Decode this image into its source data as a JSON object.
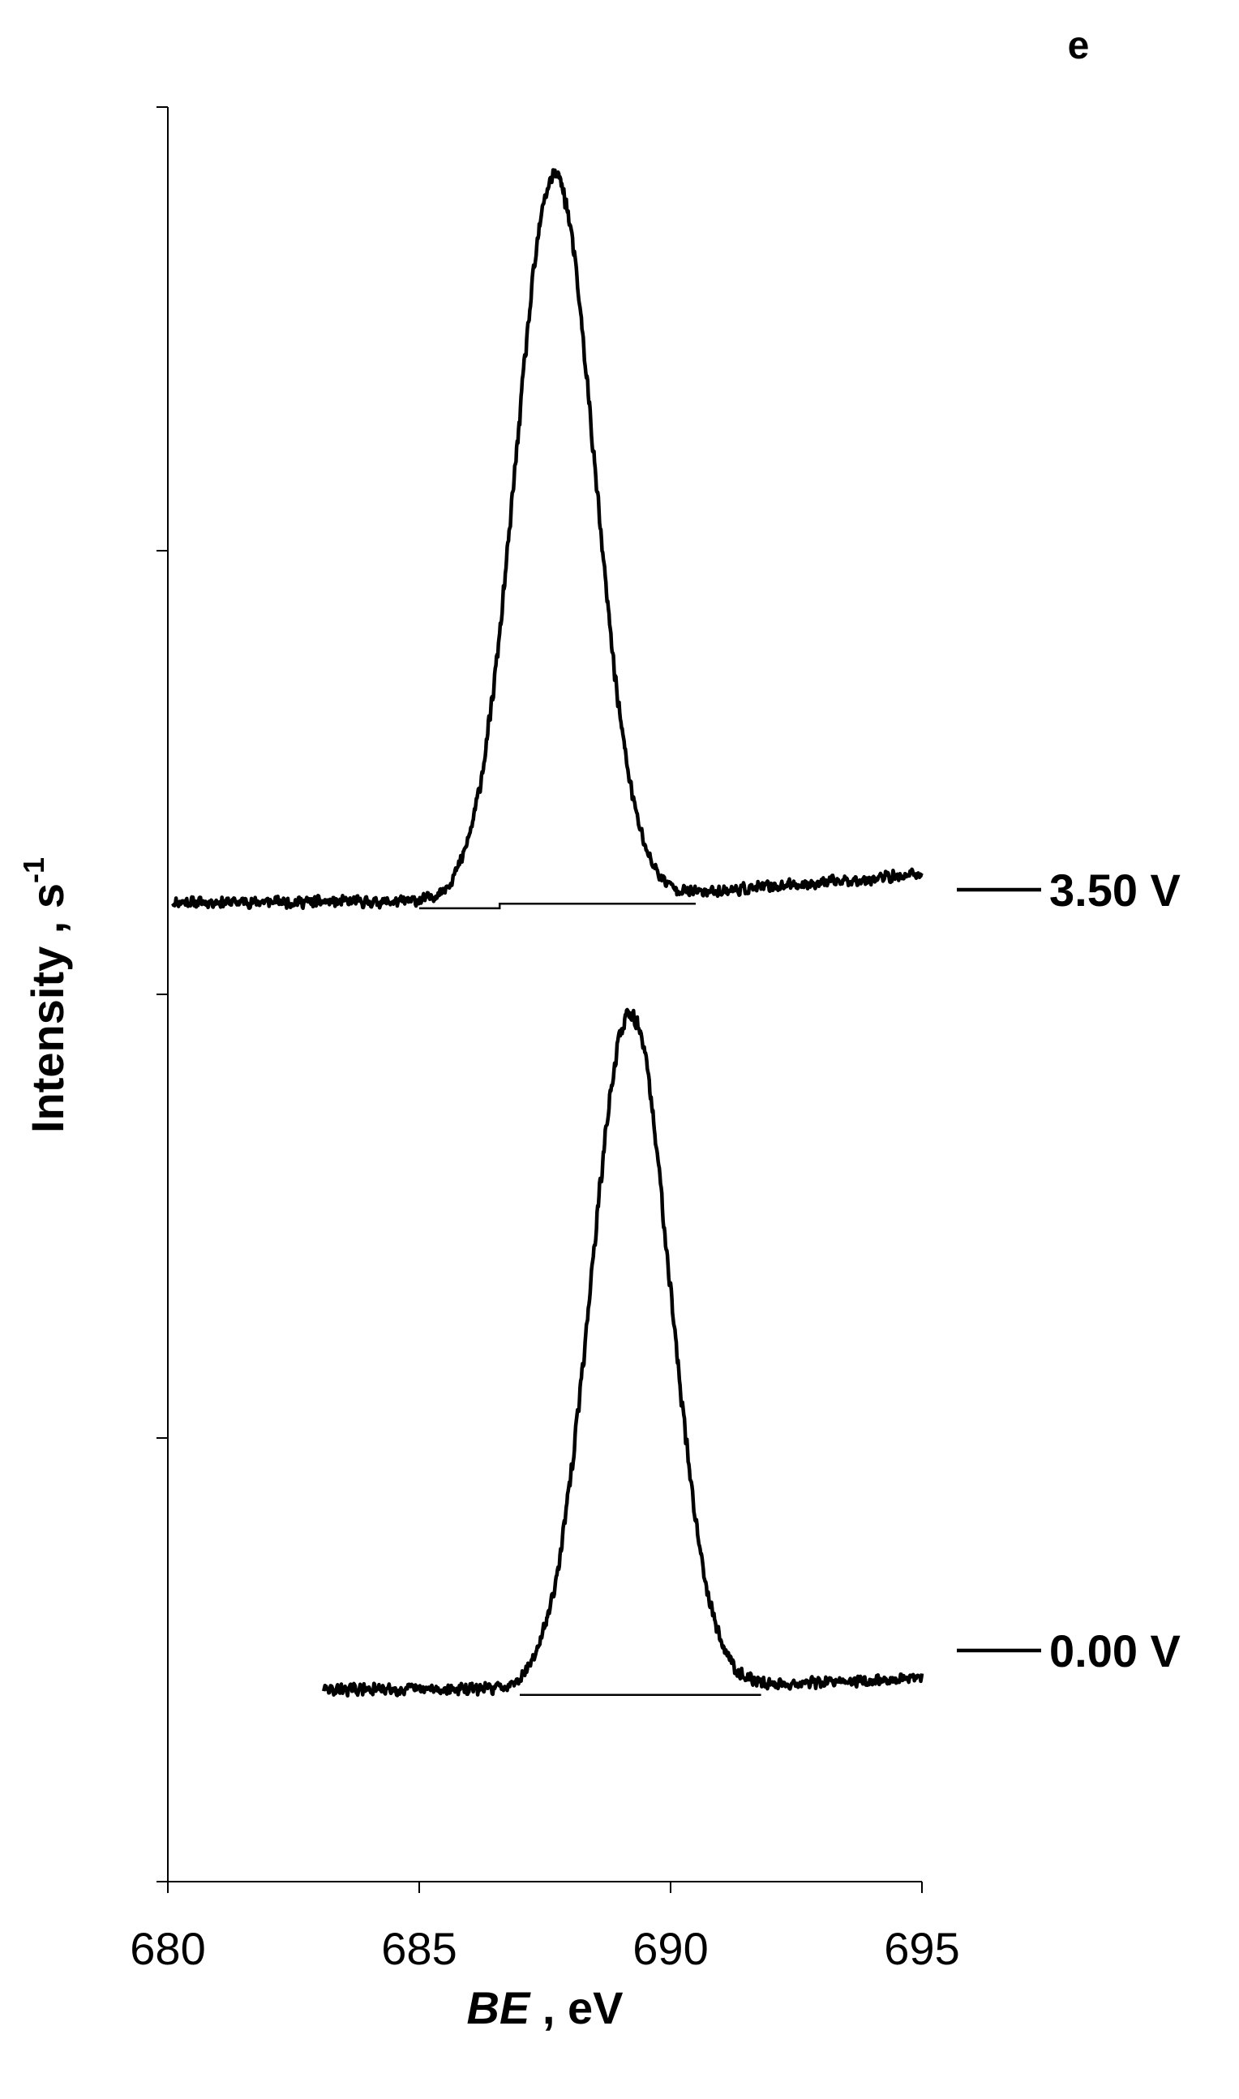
{
  "chart_data": {
    "type": "line",
    "panel_label": "e",
    "title": "",
    "xlabel_italic": "BE",
    "xlabel_rest": " , eV",
    "ylabel": "Intensity , s",
    "ylabel_sup": "-1",
    "xlim": [
      680,
      695
    ],
    "x_ticks": [
      "680",
      "685",
      "690",
      "695"
    ],
    "y_ticks_count": 5,
    "grid": false,
    "line_color": "#000000",
    "series": [
      {
        "name": "3.50 V",
        "x_range": [
          680.1,
          695.0
        ],
        "peak_center": 687.7,
        "peak_sigma": 0.78,
        "peak_height": 0.79,
        "baseline_level": 0.0,
        "end_level": 0.03,
        "background_line": [
          [
            685.0,
            686.6,
            686.6,
            690.5
          ],
          [
            -0.007,
            -0.007,
            -0.002,
            -0.002
          ]
        ],
        "noise": 0.012,
        "seed": 11
      },
      {
        "name": "0.00 V",
        "x_range": [
          683.1,
          695.0
        ],
        "peak_center": 689.2,
        "peak_sigma": 0.78,
        "peak_height": 0.735,
        "baseline_level": 0.0,
        "end_level": 0.012,
        "background_line": [
          [
            687.0,
            691.8
          ],
          [
            -0.006,
            -0.006
          ]
        ],
        "noise": 0.012,
        "seed": 29
      }
    ]
  }
}
